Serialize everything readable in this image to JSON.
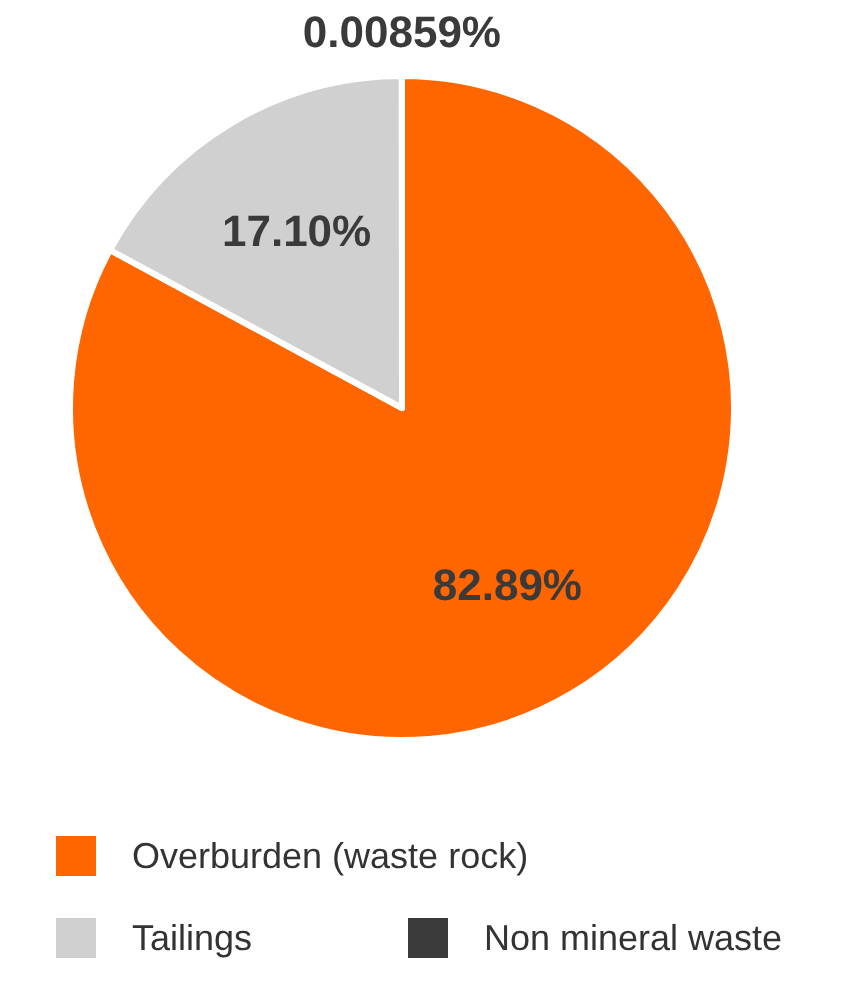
{
  "chart_data": {
    "type": "pie",
    "categories": [
      "Overburden (waste rock)",
      "Tailings",
      "Non mineral waste"
    ],
    "values": [
      82.89,
      17.1,
      0.00859
    ],
    "colors": [
      "#ff6600",
      "#d1d0d0",
      "#3b3b3b"
    ],
    "value_labels": [
      "82.89%",
      "17.10%",
      "0.00859%"
    ],
    "legend": "bottom"
  }
}
